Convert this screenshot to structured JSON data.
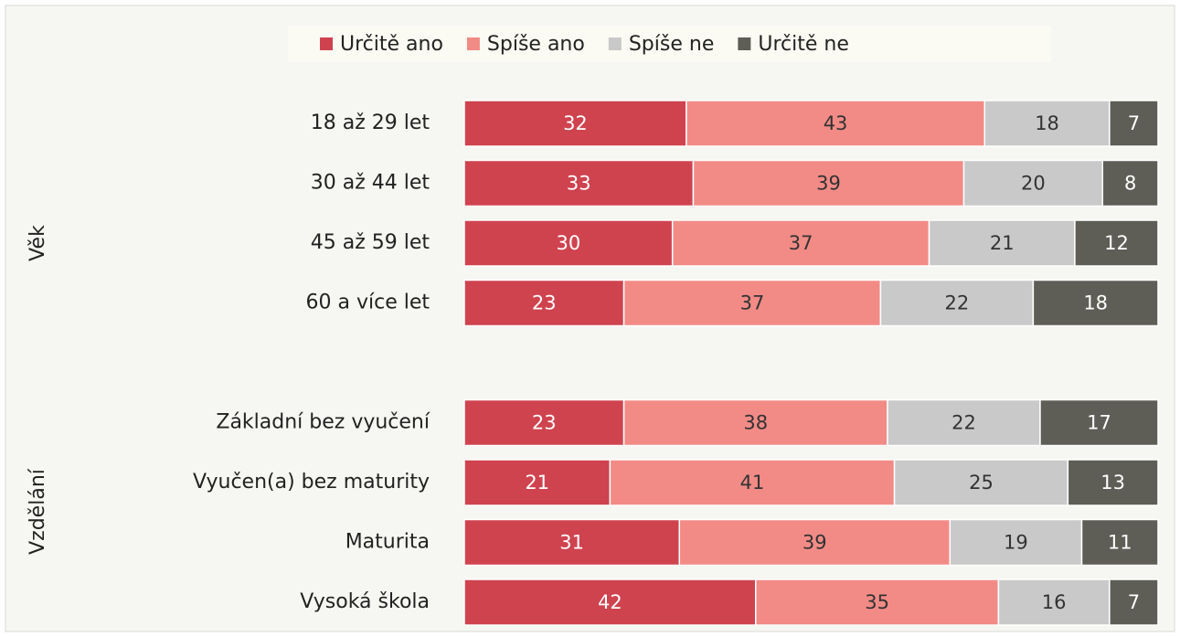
{
  "chart_data": {
    "type": "stacked_barh",
    "categories": [
      "18 až 29 let",
      "30 až 44 let",
      "45 až 59 let",
      "60 a více let",
      null,
      "Základní bez vyučení",
      "Vyučen(a) bez maturity",
      "Maturita",
      "Vysoká škola"
    ],
    "groups": [
      "Věk",
      "Vzdělání"
    ],
    "xlim": [
      0,
      100
    ],
    "legend": "top",
    "series": [
      {
        "name": "Určitě ano",
        "color": "#cf434f",
        "label_color": "#ffffff",
        "values": [
          32,
          33,
          30,
          23,
          null,
          23,
          21,
          31,
          42
        ]
      },
      {
        "name": "Spíše ano",
        "color": "#f28b86",
        "label_color": "#333333",
        "values": [
          43,
          39,
          37,
          37,
          null,
          38,
          41,
          39,
          35
        ]
      },
      {
        "name": "Spíše ne",
        "color": "#c9c9c9",
        "label_color": "#333333",
        "values": [
          18,
          20,
          21,
          22,
          null,
          22,
          25,
          19,
          16
        ]
      },
      {
        "name": "Určitě ne",
        "color": "#5e5e57",
        "label_color": "#ffffff",
        "values": [
          7,
          8,
          12,
          18,
          null,
          17,
          13,
          11,
          7
        ]
      }
    ]
  }
}
